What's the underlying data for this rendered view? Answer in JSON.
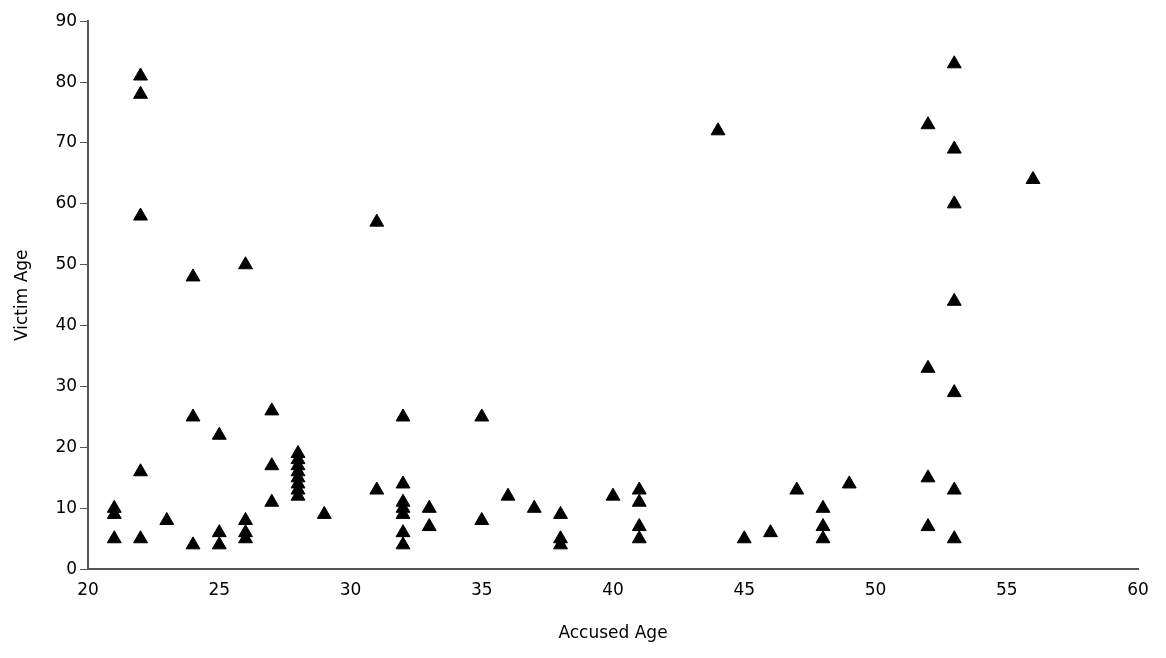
{
  "chart_data": {
    "type": "scatter",
    "xlabel": "Accused Age",
    "ylabel": "Victim Age",
    "x": [
      21,
      21,
      21,
      22,
      22,
      22,
      22,
      22,
      23,
      24,
      24,
      24,
      25,
      25,
      25,
      26,
      26,
      26,
      26,
      27,
      27,
      27,
      28,
      28,
      28,
      28,
      28,
      28,
      28,
      28,
      29,
      31,
      31,
      32,
      32,
      32,
      32,
      32,
      32,
      32,
      33,
      33,
      35,
      35,
      36,
      37,
      38,
      38,
      38,
      40,
      41,
      41,
      41,
      41,
      44,
      45,
      46,
      47,
      48,
      48,
      48,
      49,
      52,
      52,
      52,
      52,
      53,
      53,
      53,
      53,
      53,
      53,
      53,
      56
    ],
    "values": [
      10,
      9,
      5,
      81,
      78,
      58,
      16,
      5,
      8,
      48,
      25,
      4,
      22,
      6,
      4,
      50,
      8,
      6,
      5,
      26,
      17,
      11,
      19,
      18,
      17,
      16,
      15,
      14,
      13,
      12,
      9,
      57,
      13,
      25,
      14,
      11,
      10,
      9,
      6,
      4,
      10,
      7,
      25,
      8,
      12,
      10,
      9,
      5,
      4,
      12,
      13,
      11,
      7,
      5,
      72,
      5,
      6,
      13,
      10,
      7,
      5,
      14,
      73,
      33,
      15,
      7,
      83,
      69,
      60,
      44,
      29,
      13,
      5,
      64
    ],
    "color": "#000000",
    "marker": "triangle",
    "xlim": [
      20,
      60
    ],
    "xticks": [
      20,
      25,
      30,
      35,
      40,
      45,
      50,
      55,
      60
    ],
    "ylim": [
      0,
      90
    ],
    "yticks": [
      0,
      10,
      20,
      30,
      40,
      50,
      60,
      70,
      80,
      90
    ],
    "grid": false,
    "legend": false
  }
}
